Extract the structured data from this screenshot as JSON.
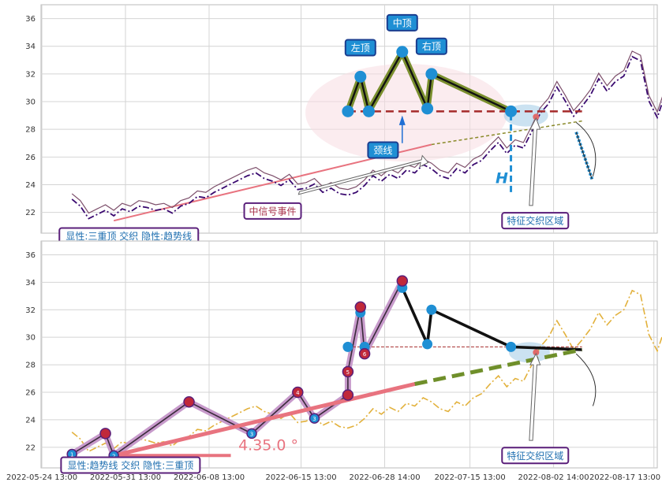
{
  "chart_data": {
    "type": "line",
    "x_ticks": [
      "2022-05-24 13:00",
      "2022-05-31 13:00",
      "2022-06-08 13:00",
      "2022-06-15 13:00",
      "2022-06-28 14:00",
      "2022-07-15 13:00",
      "2022-08-02 14:00",
      "2022-08-17 13:00"
    ],
    "y_ticks": [
      22,
      24,
      26,
      28,
      30,
      32,
      34,
      36
    ],
    "ylim": [
      20.5,
      37
    ],
    "xlim": [
      -2.7,
      71
    ],
    "grid": true,
    "price": [
      23.1,
      22.6,
      21.7,
      22.0,
      22.3,
      21.9,
      22.4,
      22.2,
      22.6,
      22.5,
      22.3,
      22.4,
      22.1,
      22.6,
      22.8,
      23.3,
      23.2,
      23.6,
      23.9,
      24.2,
      24.5,
      24.8,
      25.0,
      24.6,
      24.4,
      24.1,
      24.5,
      23.8,
      23.9,
      24.2,
      23.6,
      23.9,
      23.5,
      23.4,
      23.6,
      24.1,
      24.8,
      24.4,
      24.9,
      24.6,
      25.2,
      25.0,
      25.6,
      25.3,
      24.8,
      24.6,
      25.3,
      25.0,
      25.6,
      25.9,
      26.6,
      27.2,
      26.4,
      27.0,
      26.8,
      28.0,
      29.3,
      30.0,
      31.2,
      30.2,
      29.1,
      29.8,
      30.6,
      31.8,
      30.9,
      31.6,
      32.0,
      33.4,
      33.1,
      30.2,
      29.0,
      30.8,
      32.1,
      31.7
    ],
    "panel1": {
      "label_box": "显性:三重顶 交织 隐性:趋势线",
      "pattern_points": [
        [
          34,
          29.3
        ],
        [
          35.5,
          31.8
        ],
        [
          36.5,
          29.3
        ],
        [
          40.5,
          33.6
        ],
        [
          43.5,
          29.5
        ],
        [
          44,
          32.0
        ],
        [
          53.5,
          29.3
        ]
      ],
      "neckline_y": 29.3,
      "neckline_x": [
        34,
        62
      ],
      "trendline": [
        [
          6,
          21.4
        ],
        [
          44,
          26.9
        ]
      ],
      "trendline_ext": [
        [
          44,
          26.9
        ],
        [
          62,
          28.6
        ]
      ],
      "labels": {
        "left_top": "左顶",
        "middle_top": "中顶",
        "right_top": "右顶",
        "neckline": "颈线",
        "mid_signal": "中信号事件",
        "zone": "特征交织区域",
        "h": "H"
      }
    },
    "panel2": {
      "label_box": "显性:趋势线 交织 隐性:三重顶",
      "angle_text": "4.35.0 °",
      "zigzag": [
        [
          1,
          21.5
        ],
        [
          5,
          23.0
        ],
        [
          6,
          21.4
        ],
        [
          15,
          25.3
        ],
        [
          22.5,
          23.0
        ],
        [
          28,
          26.0
        ],
        [
          30,
          24.1
        ],
        [
          34,
          25.8
        ],
        [
          34,
          27.5
        ],
        [
          35.5,
          32.2
        ],
        [
          36,
          28.8
        ],
        [
          40.5,
          34.1
        ]
      ],
      "trendline": [
        [
          6,
          21.4
        ],
        [
          42,
          26.6
        ]
      ],
      "trendline_ext": [
        [
          42,
          26.6
        ],
        [
          62,
          29.1
        ]
      ],
      "black_lines": [
        [
          40.5,
          33.6
        ],
        [
          43.5,
          29.5
        ],
        [
          44,
          32.0
        ],
        [
          53.5,
          29.3
        ],
        [
          62,
          29.1
        ]
      ],
      "neckline_y": 29.3,
      "numbered_markers": [
        "1",
        "2",
        "3",
        "4",
        "5",
        "6"
      ],
      "labels": {
        "zone": "特征交织区域"
      }
    }
  }
}
